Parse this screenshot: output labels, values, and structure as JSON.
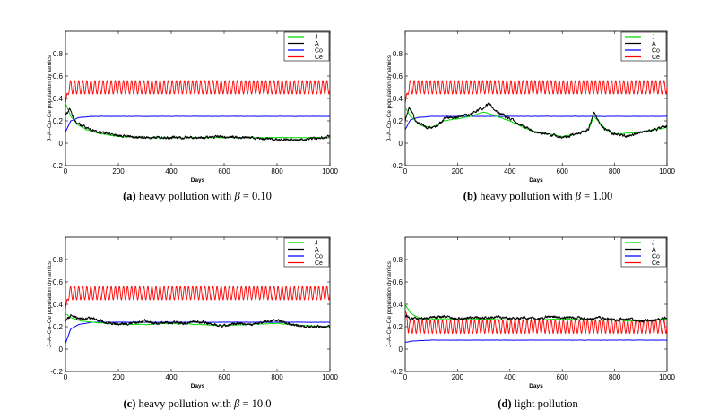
{
  "chart_data": [
    {
      "type": "line",
      "panel_tag": "(a)",
      "caption": "heavy pollution with",
      "beta_symbol": "β",
      "beta_value": "= 0.10",
      "xlabel": "Days",
      "ylabel": "J–A–Co–Ce population dynamics",
      "xlim": [
        0,
        1000
      ],
      "ylim": [
        -0.2,
        1.0
      ],
      "xticks": [
        "0",
        "200",
        "400",
        "600",
        "800",
        "1000"
      ],
      "yticks": [
        "-0.2",
        "0",
        "0.2",
        "0.4",
        "0.6",
        "0.8"
      ],
      "grid": false,
      "legend_position": "top-right",
      "series": [
        {
          "name": "J",
          "color": "#00dd00",
          "x": [
            0,
            20,
            50,
            80,
            120,
            200,
            300,
            400,
            600,
            800,
            1000
          ],
          "values": [
            0.36,
            0.24,
            0.16,
            0.12,
            0.09,
            0.06,
            0.05,
            0.05,
            0.05,
            0.05,
            0.05
          ]
        },
        {
          "name": "A",
          "color": "#000000",
          "x": [
            0,
            15,
            40,
            80,
            120,
            200,
            300,
            400,
            500,
            600,
            700,
            800,
            900,
            1000
          ],
          "values": [
            0.25,
            0.31,
            0.18,
            0.14,
            0.1,
            0.07,
            0.05,
            0.05,
            0.05,
            0.06,
            0.05,
            0.03,
            0.03,
            0.06
          ]
        },
        {
          "name": "Co",
          "color": "#0000ff",
          "x": [
            0,
            20,
            50,
            100,
            1000
          ],
          "values": [
            0.1,
            0.2,
            0.23,
            0.24,
            0.24
          ]
        },
        {
          "name": "Ce",
          "color": "#ff0000",
          "oscillation": {
            "mean": 0.5,
            "amplitude": 0.06,
            "cycles": 65
          },
          "x": [
            0,
            1000
          ],
          "values": [
            0.5,
            0.5
          ]
        }
      ]
    },
    {
      "type": "line",
      "panel_tag": "(b)",
      "caption": "heavy pollution with",
      "beta_symbol": "β",
      "beta_value": "= 1.00",
      "xlabel": "Days",
      "ylabel": "J–A–Co–Ce population dynamics",
      "xlim": [
        0,
        1000
      ],
      "ylim": [
        -0.2,
        1.0
      ],
      "xticks": [
        "0",
        "200",
        "400",
        "600",
        "800",
        "1000"
      ],
      "yticks": [
        "-0.2",
        "0",
        "0.2",
        "0.4",
        "0.6",
        "0.8"
      ],
      "grid": false,
      "legend_position": "top-right",
      "series": [
        {
          "name": "J",
          "color": "#00dd00",
          "x": [
            0,
            20,
            60,
            100,
            150,
            200,
            250,
            300,
            350,
            400,
            450,
            500,
            550,
            600,
            650,
            700,
            720,
            760,
            800,
            900,
            1000
          ],
          "values": [
            0.32,
            0.24,
            0.16,
            0.14,
            0.2,
            0.22,
            0.24,
            0.28,
            0.24,
            0.2,
            0.14,
            0.1,
            0.08,
            0.06,
            0.08,
            0.12,
            0.24,
            0.14,
            0.08,
            0.1,
            0.14
          ]
        },
        {
          "name": "A",
          "color": "#000000",
          "x": [
            0,
            15,
            40,
            80,
            120,
            150,
            200,
            250,
            300,
            320,
            350,
            400,
            450,
            500,
            550,
            600,
            650,
            700,
            720,
            750,
            800,
            850,
            900,
            950,
            1000
          ],
          "values": [
            0.2,
            0.33,
            0.2,
            0.14,
            0.15,
            0.22,
            0.24,
            0.26,
            0.32,
            0.36,
            0.28,
            0.22,
            0.15,
            0.1,
            0.08,
            0.05,
            0.08,
            0.12,
            0.28,
            0.15,
            0.08,
            0.06,
            0.1,
            0.12,
            0.15
          ]
        },
        {
          "name": "Co",
          "color": "#0000ff",
          "x": [
            0,
            20,
            50,
            100,
            1000
          ],
          "values": [
            0.12,
            0.21,
            0.23,
            0.24,
            0.24
          ]
        },
        {
          "name": "Ce",
          "color": "#ff0000",
          "oscillation": {
            "mean": 0.5,
            "amplitude": 0.06,
            "cycles": 65
          },
          "x": [
            0,
            1000
          ],
          "values": [
            0.5,
            0.5
          ]
        }
      ]
    },
    {
      "type": "line",
      "panel_tag": "(c)",
      "caption": "heavy pollution with",
      "beta_symbol": "β",
      "beta_value": "= 10.0",
      "xlabel": "Days",
      "ylabel": "J–A–Co–Ce population dynamics",
      "xlim": [
        0,
        1000
      ],
      "ylim": [
        -0.2,
        1.0
      ],
      "xticks": [
        "0",
        "200",
        "400",
        "600",
        "800",
        "1000"
      ],
      "yticks": [
        "-0.2",
        "0",
        "0.2",
        "0.4",
        "0.6",
        "0.8"
      ],
      "grid": false,
      "legend_position": "top-right",
      "series": [
        {
          "name": "J",
          "color": "#00dd00",
          "x": [
            0,
            20,
            60,
            100,
            200,
            300,
            400,
            500,
            600,
            700,
            800,
            900,
            1000
          ],
          "values": [
            0.32,
            0.28,
            0.25,
            0.24,
            0.22,
            0.22,
            0.23,
            0.22,
            0.21,
            0.22,
            0.23,
            0.21,
            0.2
          ]
        },
        {
          "name": "A",
          "color": "#000000",
          "x": [
            0,
            20,
            50,
            100,
            150,
            200,
            250,
            300,
            350,
            400,
            450,
            500,
            550,
            600,
            650,
            700,
            750,
            800,
            850,
            900,
            950,
            1000
          ],
          "values": [
            0.25,
            0.3,
            0.27,
            0.28,
            0.24,
            0.22,
            0.23,
            0.25,
            0.23,
            0.24,
            0.23,
            0.25,
            0.22,
            0.21,
            0.23,
            0.22,
            0.24,
            0.26,
            0.22,
            0.2,
            0.2,
            0.2
          ]
        },
        {
          "name": "Co",
          "color": "#0000ff",
          "x": [
            0,
            20,
            50,
            100,
            1000
          ],
          "values": [
            0.05,
            0.18,
            0.22,
            0.24,
            0.24
          ]
        },
        {
          "name": "Ce",
          "color": "#ff0000",
          "oscillation": {
            "mean": 0.5,
            "amplitude": 0.06,
            "cycles": 65
          },
          "x": [
            0,
            1000
          ],
          "values": [
            0.5,
            0.5
          ]
        }
      ]
    },
    {
      "type": "line",
      "panel_tag": "(d)",
      "caption": "light pollution",
      "beta_symbol": "",
      "beta_value": "",
      "xlabel": "Days",
      "ylabel": "J–A–Co–Ce population dynamics",
      "xlim": [
        0,
        1000
      ],
      "ylim": [
        -0.2,
        1.0
      ],
      "xticks": [
        "0",
        "200",
        "400",
        "600",
        "800",
        "1000"
      ],
      "yticks": [
        "-0.2",
        "0",
        "0.2",
        "0.4",
        "0.6",
        "0.8"
      ],
      "grid": false,
      "legend_position": "top-right",
      "series": [
        {
          "name": "J",
          "color": "#00dd00",
          "x": [
            0,
            20,
            60,
            100,
            200,
            300,
            400,
            500,
            600,
            700,
            800,
            900,
            1000
          ],
          "values": [
            0.4,
            0.32,
            0.27,
            0.27,
            0.27,
            0.27,
            0.26,
            0.26,
            0.27,
            0.26,
            0.26,
            0.25,
            0.27
          ]
        },
        {
          "name": "A",
          "color": "#000000",
          "x": [
            0,
            20,
            50,
            100,
            150,
            200,
            250,
            300,
            350,
            400,
            450,
            500,
            550,
            600,
            650,
            700,
            750,
            800,
            850,
            900,
            950,
            1000
          ],
          "values": [
            0.3,
            0.28,
            0.27,
            0.28,
            0.29,
            0.27,
            0.28,
            0.28,
            0.29,
            0.27,
            0.28,
            0.27,
            0.29,
            0.28,
            0.28,
            0.27,
            0.28,
            0.26,
            0.27,
            0.25,
            0.26,
            0.28
          ]
        },
        {
          "name": "Co",
          "color": "#0000ff",
          "x": [
            0,
            20,
            50,
            100,
            1000
          ],
          "values": [
            0.06,
            0.07,
            0.075,
            0.08,
            0.08
          ]
        },
        {
          "name": "Ce",
          "color": "#ff0000",
          "oscillation": {
            "mean": 0.2,
            "amplitude": 0.06,
            "cycles": 65
          },
          "x": [
            0,
            1000
          ],
          "values": [
            0.2,
            0.2
          ]
        }
      ]
    }
  ]
}
